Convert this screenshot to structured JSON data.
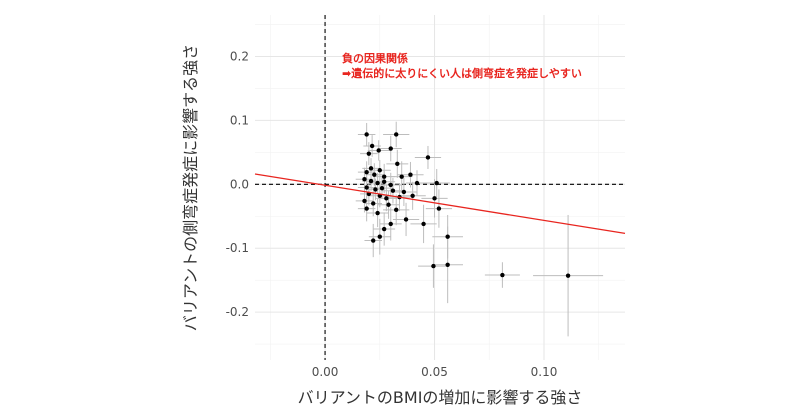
{
  "chart_data": {
    "type": "scatter",
    "title": "",
    "xlabel": "バリアントのBMIの増加に影響する強さ",
    "ylabel": "バリアントの側弯症発症に影響する強さ",
    "xlim": [
      -0.032,
      0.137
    ],
    "ylim": [
      -0.275,
      0.265
    ],
    "x_ticks": [
      0.0,
      0.05,
      0.1
    ],
    "x_tick_labels": [
      "0.00",
      "0.05",
      "0.10"
    ],
    "y_ticks": [
      -0.2,
      -0.1,
      0.0,
      0.1,
      0.2
    ],
    "y_tick_labels": [
      "-0.2",
      "-0.1",
      "0.0",
      "0.1",
      "0.2"
    ],
    "grid": true,
    "reference_lines": {
      "x": 0,
      "y": 0,
      "style": "dashed"
    },
    "regression_line": {
      "intercept": -0.0015,
      "slope": -0.55,
      "color": "#e8251f"
    },
    "annotation": {
      "title": "負の因果関係",
      "text": "➡遺伝的に太りにくい人は側弯症を発症しやすい",
      "color": "#e8251f"
    },
    "points": [
      {
        "x": 0.019,
        "y": 0.078,
        "xerr": 0.004,
        "yerr": 0.018
      },
      {
        "x": 0.0325,
        "y": 0.078,
        "xerr": 0.006,
        "yerr": 0.02
      },
      {
        "x": 0.0215,
        "y": 0.06,
        "xerr": 0.004,
        "yerr": 0.017
      },
      {
        "x": 0.0245,
        "y": 0.053,
        "xerr": 0.005,
        "yerr": 0.016
      },
      {
        "x": 0.02,
        "y": 0.048,
        "xerr": 0.004,
        "yerr": 0.018
      },
      {
        "x": 0.03,
        "y": 0.056,
        "xerr": 0.005,
        "yerr": 0.02
      },
      {
        "x": 0.047,
        "y": 0.042,
        "xerr": 0.006,
        "yerr": 0.018
      },
      {
        "x": 0.033,
        "y": 0.032,
        "xerr": 0.005,
        "yerr": 0.022
      },
      {
        "x": 0.021,
        "y": 0.025,
        "xerr": 0.004,
        "yerr": 0.016
      },
      {
        "x": 0.025,
        "y": 0.022,
        "xerr": 0.005,
        "yerr": 0.016
      },
      {
        "x": 0.019,
        "y": 0.019,
        "xerr": 0.004,
        "yerr": 0.017
      },
      {
        "x": 0.0225,
        "y": 0.015,
        "xerr": 0.004,
        "yerr": 0.018
      },
      {
        "x": 0.027,
        "y": 0.012,
        "xerr": 0.005,
        "yerr": 0.02
      },
      {
        "x": 0.035,
        "y": 0.012,
        "xerr": 0.005,
        "yerr": 0.024
      },
      {
        "x": 0.039,
        "y": 0.015,
        "xerr": 0.006,
        "yerr": 0.02
      },
      {
        "x": 0.018,
        "y": 0.008,
        "xerr": 0.004,
        "yerr": 0.018
      },
      {
        "x": 0.021,
        "y": 0.005,
        "xerr": 0.004,
        "yerr": 0.016
      },
      {
        "x": 0.024,
        "y": 0.002,
        "xerr": 0.004,
        "yerr": 0.016
      },
      {
        "x": 0.027,
        "y": 0.004,
        "xerr": 0.005,
        "yerr": 0.018
      },
      {
        "x": 0.03,
        "y": -0.001,
        "xerr": 0.005,
        "yerr": 0.019
      },
      {
        "x": 0.019,
        "y": -0.005,
        "xerr": 0.004,
        "yerr": 0.017
      },
      {
        "x": 0.023,
        "y": -0.008,
        "xerr": 0.004,
        "yerr": 0.017
      },
      {
        "x": 0.026,
        "y": -0.006,
        "xerr": 0.005,
        "yerr": 0.017
      },
      {
        "x": 0.031,
        "y": -0.01,
        "xerr": 0.005,
        "yerr": 0.02
      },
      {
        "x": 0.036,
        "y": -0.012,
        "xerr": 0.006,
        "yerr": 0.022
      },
      {
        "x": 0.02,
        "y": -0.015,
        "xerr": 0.004,
        "yerr": 0.018
      },
      {
        "x": 0.025,
        "y": -0.018,
        "xerr": 0.005,
        "yerr": 0.018
      },
      {
        "x": 0.028,
        "y": -0.022,
        "xerr": 0.005,
        "yerr": 0.02
      },
      {
        "x": 0.034,
        "y": -0.02,
        "xerr": 0.005,
        "yerr": 0.022
      },
      {
        "x": 0.04,
        "y": -0.018,
        "xerr": 0.006,
        "yerr": 0.022
      },
      {
        "x": 0.018,
        "y": -0.026,
        "xerr": 0.004,
        "yerr": 0.018
      },
      {
        "x": 0.022,
        "y": -0.03,
        "xerr": 0.004,
        "yerr": 0.02
      },
      {
        "x": 0.029,
        "y": -0.032,
        "xerr": 0.005,
        "yerr": 0.022
      },
      {
        "x": 0.0325,
        "y": -0.04,
        "xerr": 0.006,
        "yerr": 0.024
      },
      {
        "x": 0.024,
        "y": -0.045,
        "xerr": 0.005,
        "yerr": 0.022
      },
      {
        "x": 0.019,
        "y": -0.038,
        "xerr": 0.004,
        "yerr": 0.02
      },
      {
        "x": 0.037,
        "y": -0.055,
        "xerr": 0.006,
        "yerr": 0.026
      },
      {
        "x": 0.03,
        "y": -0.062,
        "xerr": 0.005,
        "yerr": 0.026
      },
      {
        "x": 0.027,
        "y": -0.07,
        "xerr": 0.005,
        "yerr": 0.026
      },
      {
        "x": 0.025,
        "y": -0.082,
        "xerr": 0.005,
        "yerr": 0.028
      },
      {
        "x": 0.022,
        "y": -0.088,
        "xerr": 0.004,
        "yerr": 0.026
      },
      {
        "x": 0.042,
        "y": 0.002,
        "xerr": 0.005,
        "yerr": 0.02
      },
      {
        "x": 0.051,
        "y": 0.002,
        "xerr": 0.006,
        "yerr": 0.022
      },
      {
        "x": 0.05,
        "y": -0.022,
        "xerr": 0.006,
        "yerr": 0.03
      },
      {
        "x": 0.052,
        "y": -0.038,
        "xerr": 0.006,
        "yerr": 0.03
      },
      {
        "x": 0.045,
        "y": -0.062,
        "xerr": 0.006,
        "yerr": 0.03
      },
      {
        "x": 0.056,
        "y": -0.082,
        "xerr": 0.007,
        "yerr": 0.034
      },
      {
        "x": 0.0495,
        "y": -0.128,
        "xerr": 0.007,
        "yerr": 0.034
      },
      {
        "x": 0.056,
        "y": -0.126,
        "xerr": 0.007,
        "yerr": 0.06
      },
      {
        "x": 0.081,
        "y": -0.142,
        "xerr": 0.008,
        "yerr": 0.02
      },
      {
        "x": 0.111,
        "y": -0.143,
        "xerr": 0.016,
        "yerr": 0.095
      }
    ]
  }
}
